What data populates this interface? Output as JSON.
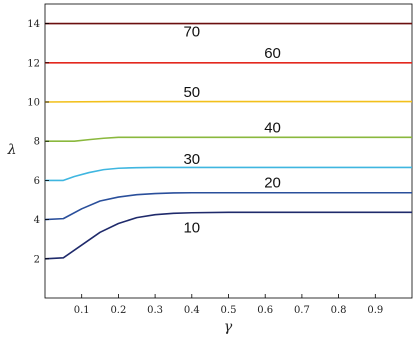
{
  "chart_data": {
    "type": "line",
    "xlabel": "γ",
    "ylabel": "λ",
    "xlim": [
      0,
      1
    ],
    "ylim": [
      0,
      15
    ],
    "xticks": [
      0.1,
      0.2,
      0.3,
      0.4,
      0.5,
      0.6,
      0.7,
      0.8,
      0.9
    ],
    "yticks": [
      2,
      4,
      6,
      8,
      10,
      12,
      14
    ],
    "grid": false,
    "series": [
      {
        "name": "10",
        "color": "#1f2a6b",
        "label_at": [
          0.4,
          3.6
        ],
        "x": [
          0,
          0.05,
          0.1,
          0.15,
          0.2,
          0.25,
          0.3,
          0.35,
          0.4,
          0.5,
          0.6,
          0.7,
          0.8,
          0.9,
          1.0
        ],
        "y": [
          2.0,
          2.05,
          2.7,
          3.35,
          3.8,
          4.1,
          4.25,
          4.32,
          4.35,
          4.37,
          4.37,
          4.37,
          4.37,
          4.37,
          4.37
        ]
      },
      {
        "name": "20",
        "color": "#2a4f9b",
        "label_at": [
          0.62,
          5.9
        ],
        "x": [
          0,
          0.05,
          0.1,
          0.15,
          0.2,
          0.25,
          0.3,
          0.35,
          0.4,
          0.5,
          0.6,
          0.7,
          0.8,
          0.9,
          1.0
        ],
        "y": [
          4.0,
          4.05,
          4.55,
          4.95,
          5.15,
          5.27,
          5.33,
          5.36,
          5.37,
          5.37,
          5.37,
          5.37,
          5.37,
          5.37,
          5.37
        ]
      },
      {
        "name": "30",
        "color": "#3fb6e0",
        "label_at": [
          0.4,
          7.1
        ],
        "x": [
          0,
          0.05,
          0.08,
          0.12,
          0.16,
          0.2,
          0.25,
          0.3,
          0.4,
          0.5,
          0.6,
          0.7,
          0.8,
          0.9,
          1.0
        ],
        "y": [
          6.0,
          6.0,
          6.2,
          6.4,
          6.55,
          6.62,
          6.65,
          6.66,
          6.66,
          6.66,
          6.66,
          6.66,
          6.66,
          6.66,
          6.66
        ]
      },
      {
        "name": "40",
        "color": "#8ab83d",
        "label_at": [
          0.62,
          8.7
        ],
        "x": [
          0,
          0.08,
          0.12,
          0.16,
          0.2,
          0.25,
          0.3,
          0.4,
          0.5,
          0.6,
          0.7,
          0.8,
          0.9,
          1.0
        ],
        "y": [
          8.0,
          8.0,
          8.08,
          8.15,
          8.2,
          8.2,
          8.2,
          8.2,
          8.2,
          8.2,
          8.2,
          8.2,
          8.2,
          8.2
        ]
      },
      {
        "name": "50",
        "color": "#f2c01b",
        "label_at": [
          0.4,
          10.5
        ],
        "x": [
          0,
          0.2,
          0.4,
          0.6,
          0.8,
          1.0
        ],
        "y": [
          10.0,
          10.02,
          10.02,
          10.02,
          10.02,
          10.02
        ]
      },
      {
        "name": "60",
        "color": "#e3281e",
        "label_at": [
          0.62,
          12.5
        ],
        "x": [
          0,
          0.5,
          1.0
        ],
        "y": [
          12.0,
          12.0,
          12.0
        ]
      },
      {
        "name": "70",
        "color": "#6b0f0f",
        "label_at": [
          0.4,
          13.6
        ],
        "x": [
          0,
          0.5,
          1.0
        ],
        "y": [
          14.0,
          14.0,
          14.0
        ]
      }
    ]
  }
}
